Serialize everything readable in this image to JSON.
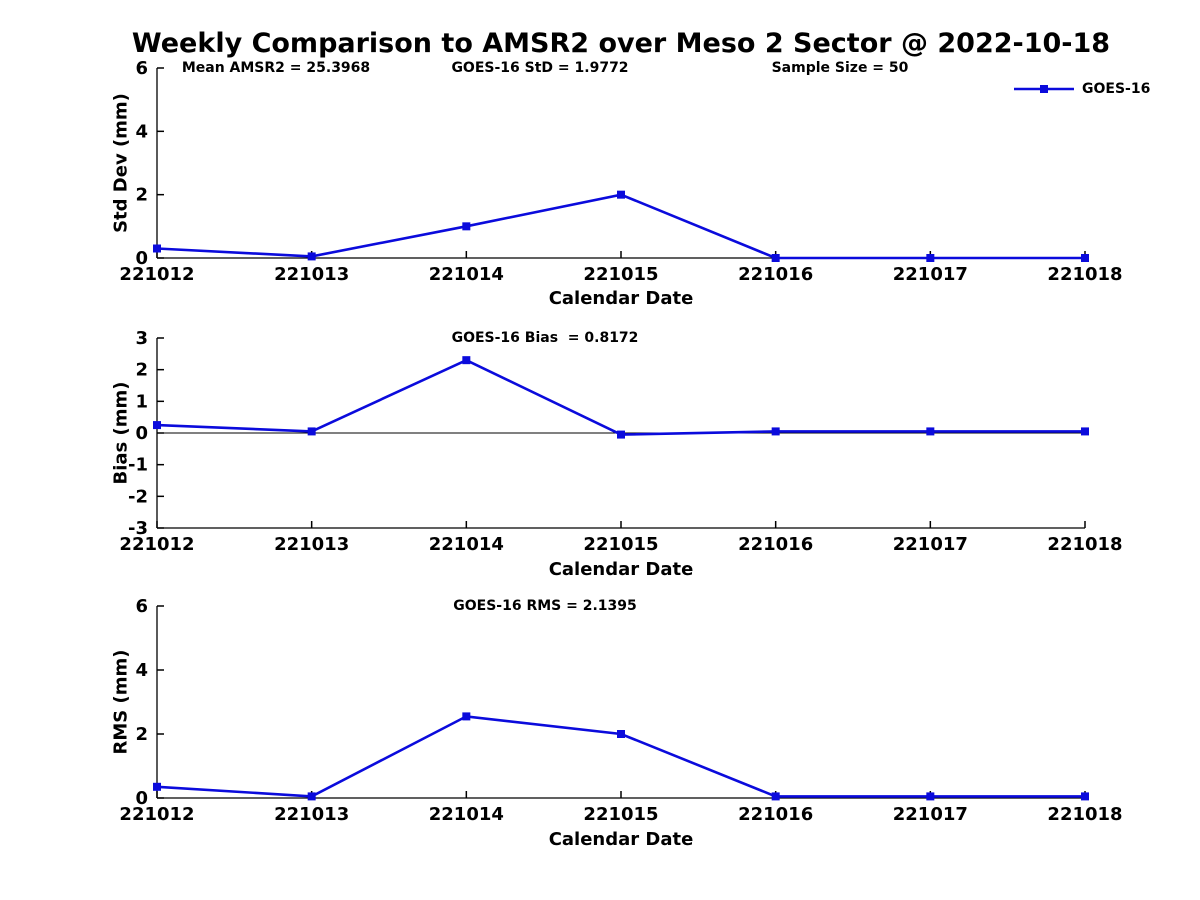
{
  "title": "Weekly Comparison to AMSR2 over Meso 2 Sector @ 2022-10-18",
  "legend": {
    "label": "GOES-16"
  },
  "colors": {
    "line": "#0b0bdc",
    "axis": "#000000",
    "text": "#000000",
    "background": "#ffffff"
  },
  "chart_data": [
    {
      "id": "std-dev",
      "type": "line",
      "series_name": "GOES-16",
      "categories": [
        "221012",
        "221013",
        "221014",
        "221015",
        "221016",
        "221017",
        "221018"
      ],
      "values": [
        0.3,
        0.05,
        1.0,
        2.0,
        0.0,
        0.0,
        0.0
      ],
      "xlabel": "Calendar Date",
      "ylabel": "Std Dev (mm)",
      "ylim": [
        0,
        6
      ],
      "yticks": [
        0,
        2,
        4,
        6
      ],
      "zero_line": false,
      "grid": false,
      "legend_position": "top-right",
      "annotations": [
        {
          "text": "Mean AMSR2 = 25.3968"
        },
        {
          "text": "GOES-16 StD = 1.9772"
        },
        {
          "text": "Sample Size = 50"
        }
      ]
    },
    {
      "id": "bias",
      "type": "line",
      "series_name": "GOES-16",
      "categories": [
        "221012",
        "221013",
        "221014",
        "221015",
        "221016",
        "221017",
        "221018"
      ],
      "values": [
        0.25,
        0.05,
        2.3,
        -0.05,
        0.05,
        0.05,
        0.05
      ],
      "xlabel": "Calendar Date",
      "ylabel": "Bias (mm)",
      "ylim": [
        -3,
        3
      ],
      "yticks": [
        -3,
        -2,
        -1,
        0,
        1,
        2,
        3
      ],
      "zero_line": true,
      "grid": false,
      "annotations": [
        {
          "text": "GOES-16 Bias  = 0.8172"
        }
      ]
    },
    {
      "id": "rms",
      "type": "line",
      "series_name": "GOES-16",
      "categories": [
        "221012",
        "221013",
        "221014",
        "221015",
        "221016",
        "221017",
        "221018"
      ],
      "values": [
        0.35,
        0.05,
        2.55,
        2.0,
        0.05,
        0.05,
        0.05
      ],
      "xlabel": "Calendar Date",
      "ylabel": "RMS (mm)",
      "ylim": [
        0,
        6
      ],
      "yticks": [
        0,
        2,
        4,
        6
      ],
      "zero_line": false,
      "grid": false,
      "annotations": [
        {
          "text": "GOES-16 RMS = 2.1395"
        }
      ]
    }
  ]
}
